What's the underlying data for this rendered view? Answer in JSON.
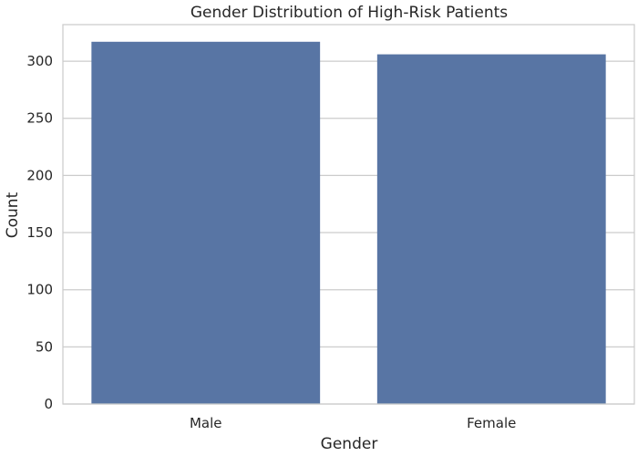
{
  "chart_data": {
    "type": "bar",
    "title": "Gender Distribution of High-Risk Patients",
    "xlabel": "Gender",
    "ylabel": "Count",
    "categories": [
      "Male",
      "Female"
    ],
    "values": [
      317,
      306
    ],
    "ylim": [
      0,
      332
    ],
    "yticks": [
      0,
      50,
      100,
      150,
      200,
      250,
      300
    ],
    "grid": true,
    "bar_color": "#5875a4",
    "grid_color": "#cccccc",
    "frame_color": "#cccccc"
  }
}
